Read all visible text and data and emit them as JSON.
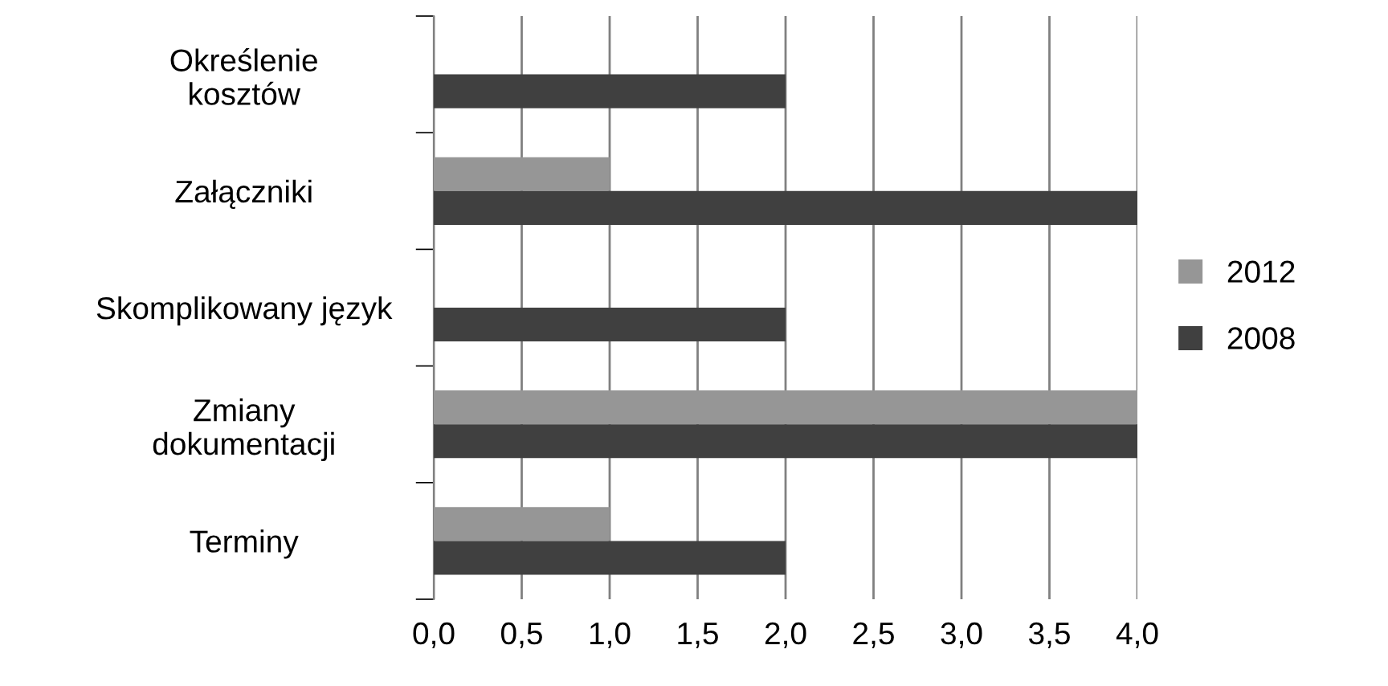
{
  "chart_data": {
    "type": "bar",
    "orientation": "horizontal",
    "categories": [
      "Określenie\nkosztów",
      "Załączniki",
      "Skomplikowany język",
      "Zmiany\ndokumentacji",
      "Terminy"
    ],
    "series": [
      {
        "name": "2012",
        "color": "#969696",
        "values": [
          0,
          1,
          0,
          4,
          1
        ]
      },
      {
        "name": "2008",
        "color": "#404040",
        "values": [
          2,
          4,
          2,
          4,
          2
        ]
      }
    ],
    "xlim": [
      0,
      4
    ],
    "xticks": [
      {
        "value": 0,
        "label": "0,0"
      },
      {
        "value": 0.5,
        "label": "0,5"
      },
      {
        "value": 1,
        "label": "1,0"
      },
      {
        "value": 1.5,
        "label": "1,5"
      },
      {
        "value": 2,
        "label": "2,0"
      },
      {
        "value": 2.5,
        "label": "2,5"
      },
      {
        "value": 3,
        "label": "3,0"
      },
      {
        "value": 3.5,
        "label": "3,5"
      },
      {
        "value": 4,
        "label": "4,0"
      }
    ],
    "grid": "x",
    "legend": "right"
  }
}
